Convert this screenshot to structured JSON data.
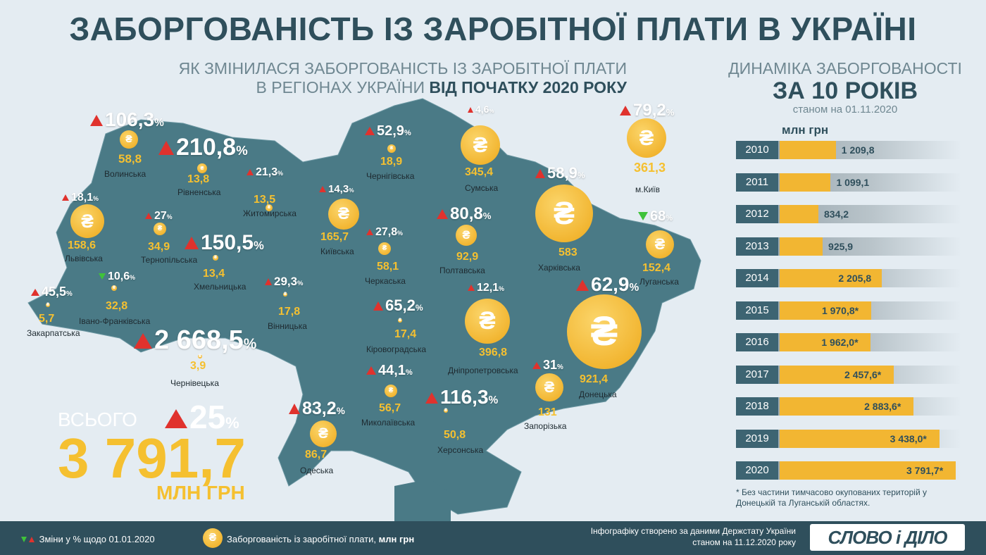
{
  "title": "ЗАБОРГОВАНІСТЬ ІЗ ЗАРОБІТНОЇ ПЛАТИ В УКРАЇНІ",
  "subtitle_line1": "ЯК ЗМІНИЛАСЯ ЗАБОРГОВАНІСТЬ ІЗ ЗАРОБІТНОЇ ПЛАТИ",
  "subtitle_line2a": "В РЕГІОНАХ УКРАЇНИ ",
  "subtitle_line2b": "ВІД ПОЧАТКУ 2020 РОКУ",
  "total": {
    "label": "ВСЬОГО",
    "value": "3 791,7",
    "unit": "МЛН ГРН",
    "change": "25",
    "pct_sign": "%"
  },
  "legend": {
    "change": "Зміни у % щодо 01.01.2020",
    "coin_text": "Заборгованість із заробітної плати, ",
    "coin_unit": "млн грн",
    "source": "Інфографіку створено за даними Держстату України станом на 11.12.2020 року",
    "logo": "СЛОВО і ДІЛО"
  },
  "colors": {
    "map": "#4a7a86",
    "coin": "#f2b632",
    "up": "#e0322d",
    "down": "#3fc23a",
    "dark": "#2f4f5c"
  },
  "chart_data": [
    {
      "type": "bar",
      "title": "ДИНАМІКА ЗАБОРГОВАНОСТІ",
      "subtitle": "ЗА 10 РОКІВ",
      "date": "станом на 01.11.2020",
      "ylabel": "млн грн",
      "categories": [
        "2010",
        "2011",
        "2012",
        "2013",
        "2014",
        "2015",
        "2016",
        "2017",
        "2018",
        "2019",
        "2020"
      ],
      "values": [
        1209.8,
        1099.1,
        834.2,
        925.9,
        2205.8,
        1970.8,
        1962.0,
        2457.6,
        2883.6,
        3438.0,
        3791.7
      ],
      "labels": [
        "1 209,8",
        "1 099,1",
        "834,2",
        "925,9",
        "2 205,8",
        "1 970,8*",
        "1 962,0*",
        "2 457,6*",
        "2 883,6*",
        "3 438,0*",
        "3 791,7*"
      ],
      "footnote": "* Без частини тимчасово окупованих територій у Донецькій та Луганській областях."
    },
    {
      "type": "map",
      "regions": [
        {
          "name": "Волинська",
          "value": "58,8",
          "change": "106,3",
          "dir": "up"
        },
        {
          "name": "Рівненська",
          "value": "13,8",
          "change": "210,8",
          "dir": "up"
        },
        {
          "name": "Житомирська",
          "value": "13,5",
          "change": "21,3",
          "dir": "up"
        },
        {
          "name": "Київська",
          "value": "165,7",
          "change": "14,3",
          "dir": "up"
        },
        {
          "name": "Чернігівська",
          "value": "18,9",
          "change": "52,9",
          "dir": "up"
        },
        {
          "name": "Сумська",
          "value": "345,4",
          "change": "4,6",
          "dir": "up"
        },
        {
          "name": "м.Київ",
          "value": "361,3",
          "change": "79,2",
          "dir": "up"
        },
        {
          "name": "Львівська",
          "value": "158,6",
          "change": "18,1",
          "dir": "up"
        },
        {
          "name": "Тернопільська",
          "value": "34,9",
          "change": "27",
          "dir": "up"
        },
        {
          "name": "Хмельницька",
          "value": "13,4",
          "change": "150,5",
          "dir": "up"
        },
        {
          "name": "Черкаська",
          "value": "58,1",
          "change": "27,8",
          "dir": "up"
        },
        {
          "name": "Полтавська",
          "value": "92,9",
          "change": "80,8",
          "dir": "up"
        },
        {
          "name": "Харківська",
          "value": "583",
          "change": "58,9",
          "dir": "up"
        },
        {
          "name": "Луганська",
          "value": "152,4",
          "change": "68",
          "dir": "down"
        },
        {
          "name": "Закарпатська",
          "value": "5,7",
          "change": "45,5",
          "dir": "up"
        },
        {
          "name": "Івано-Франківська",
          "value": "32,8",
          "change": "10,6",
          "dir": "down"
        },
        {
          "name": "Вінницька",
          "value": "17,8",
          "change": "29,3",
          "dir": "up"
        },
        {
          "name": "Кіровоградська",
          "value": "17,4",
          "change": "65,2",
          "dir": "up"
        },
        {
          "name": "Дніпропетровська",
          "value": "396,8",
          "change": "12,1",
          "dir": "up"
        },
        {
          "name": "Донецька",
          "value": "921,4",
          "change": "62,9",
          "dir": "up"
        },
        {
          "name": "Чернівецька",
          "value": "3,9",
          "change": "2 668,5",
          "dir": "up"
        },
        {
          "name": "Миколаївська",
          "value": "56,7",
          "change": "44,1",
          "dir": "up"
        },
        {
          "name": "Запорізька",
          "value": "131",
          "change": "31",
          "dir": "up"
        },
        {
          "name": "Херсонська",
          "value": "50,8",
          "change": "116,3",
          "dir": "up"
        },
        {
          "name": "Одеська",
          "value": "86,7",
          "change": "83,2",
          "dir": "up"
        }
      ]
    }
  ]
}
